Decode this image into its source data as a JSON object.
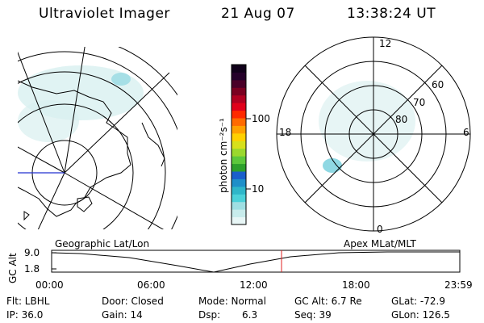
{
  "header": {
    "instrument": "Ultraviolet Imager",
    "date": "21 Aug 07",
    "time": "13:38:24 UT"
  },
  "colorbar": {
    "unit_label": "photon cm⁻²s⁻¹",
    "tick_100": "100",
    "tick_10": "10",
    "colors": [
      "#e8f6f6",
      "#c8ecec",
      "#9fdfe3",
      "#4cd1d9",
      "#2fb6c9",
      "#1f8fc9",
      "#1a5fcc",
      "#2ca02c",
      "#5cc83c",
      "#9ad82e",
      "#d7e01c",
      "#ffd000",
      "#ffa000",
      "#ff6a00",
      "#ff2a00",
      "#e0001a",
      "#b00020",
      "#7a0020",
      "#4a0028",
      "#24002a",
      "#10001a"
    ]
  },
  "polar_plot": {
    "mlt_top": "12",
    "mlt_left": "18",
    "mlt_right": "6",
    "mlt_bottom": "0",
    "lat_60": "60",
    "lat_70": "70",
    "lat_80": "80"
  },
  "timeline": {
    "left_title": "Geographic Lat/Lon",
    "right_title": "Apex MLat/MLT",
    "axis_label": "GC Alt",
    "y_top": "9.0",
    "y_bottom": "1.8",
    "x_ticks": [
      "00:00",
      "06:00",
      "12:00",
      "18:00",
      "23:59"
    ],
    "marker_time": "13:38"
  },
  "info": {
    "flt": "Flt: LBHL",
    "door": "Door: Closed",
    "mode": "Mode: Normal",
    "gc_alt": "GC Alt: 6.7 Re",
    "glat": "GLat: -72.9",
    "ip": "IP: 36.0",
    "gain": "Gain: 14",
    "dsp_label": "Dsp:",
    "dsp_value": "6.3",
    "seq": "Seq: 39",
    "glon": "GLon: 126.5"
  }
}
